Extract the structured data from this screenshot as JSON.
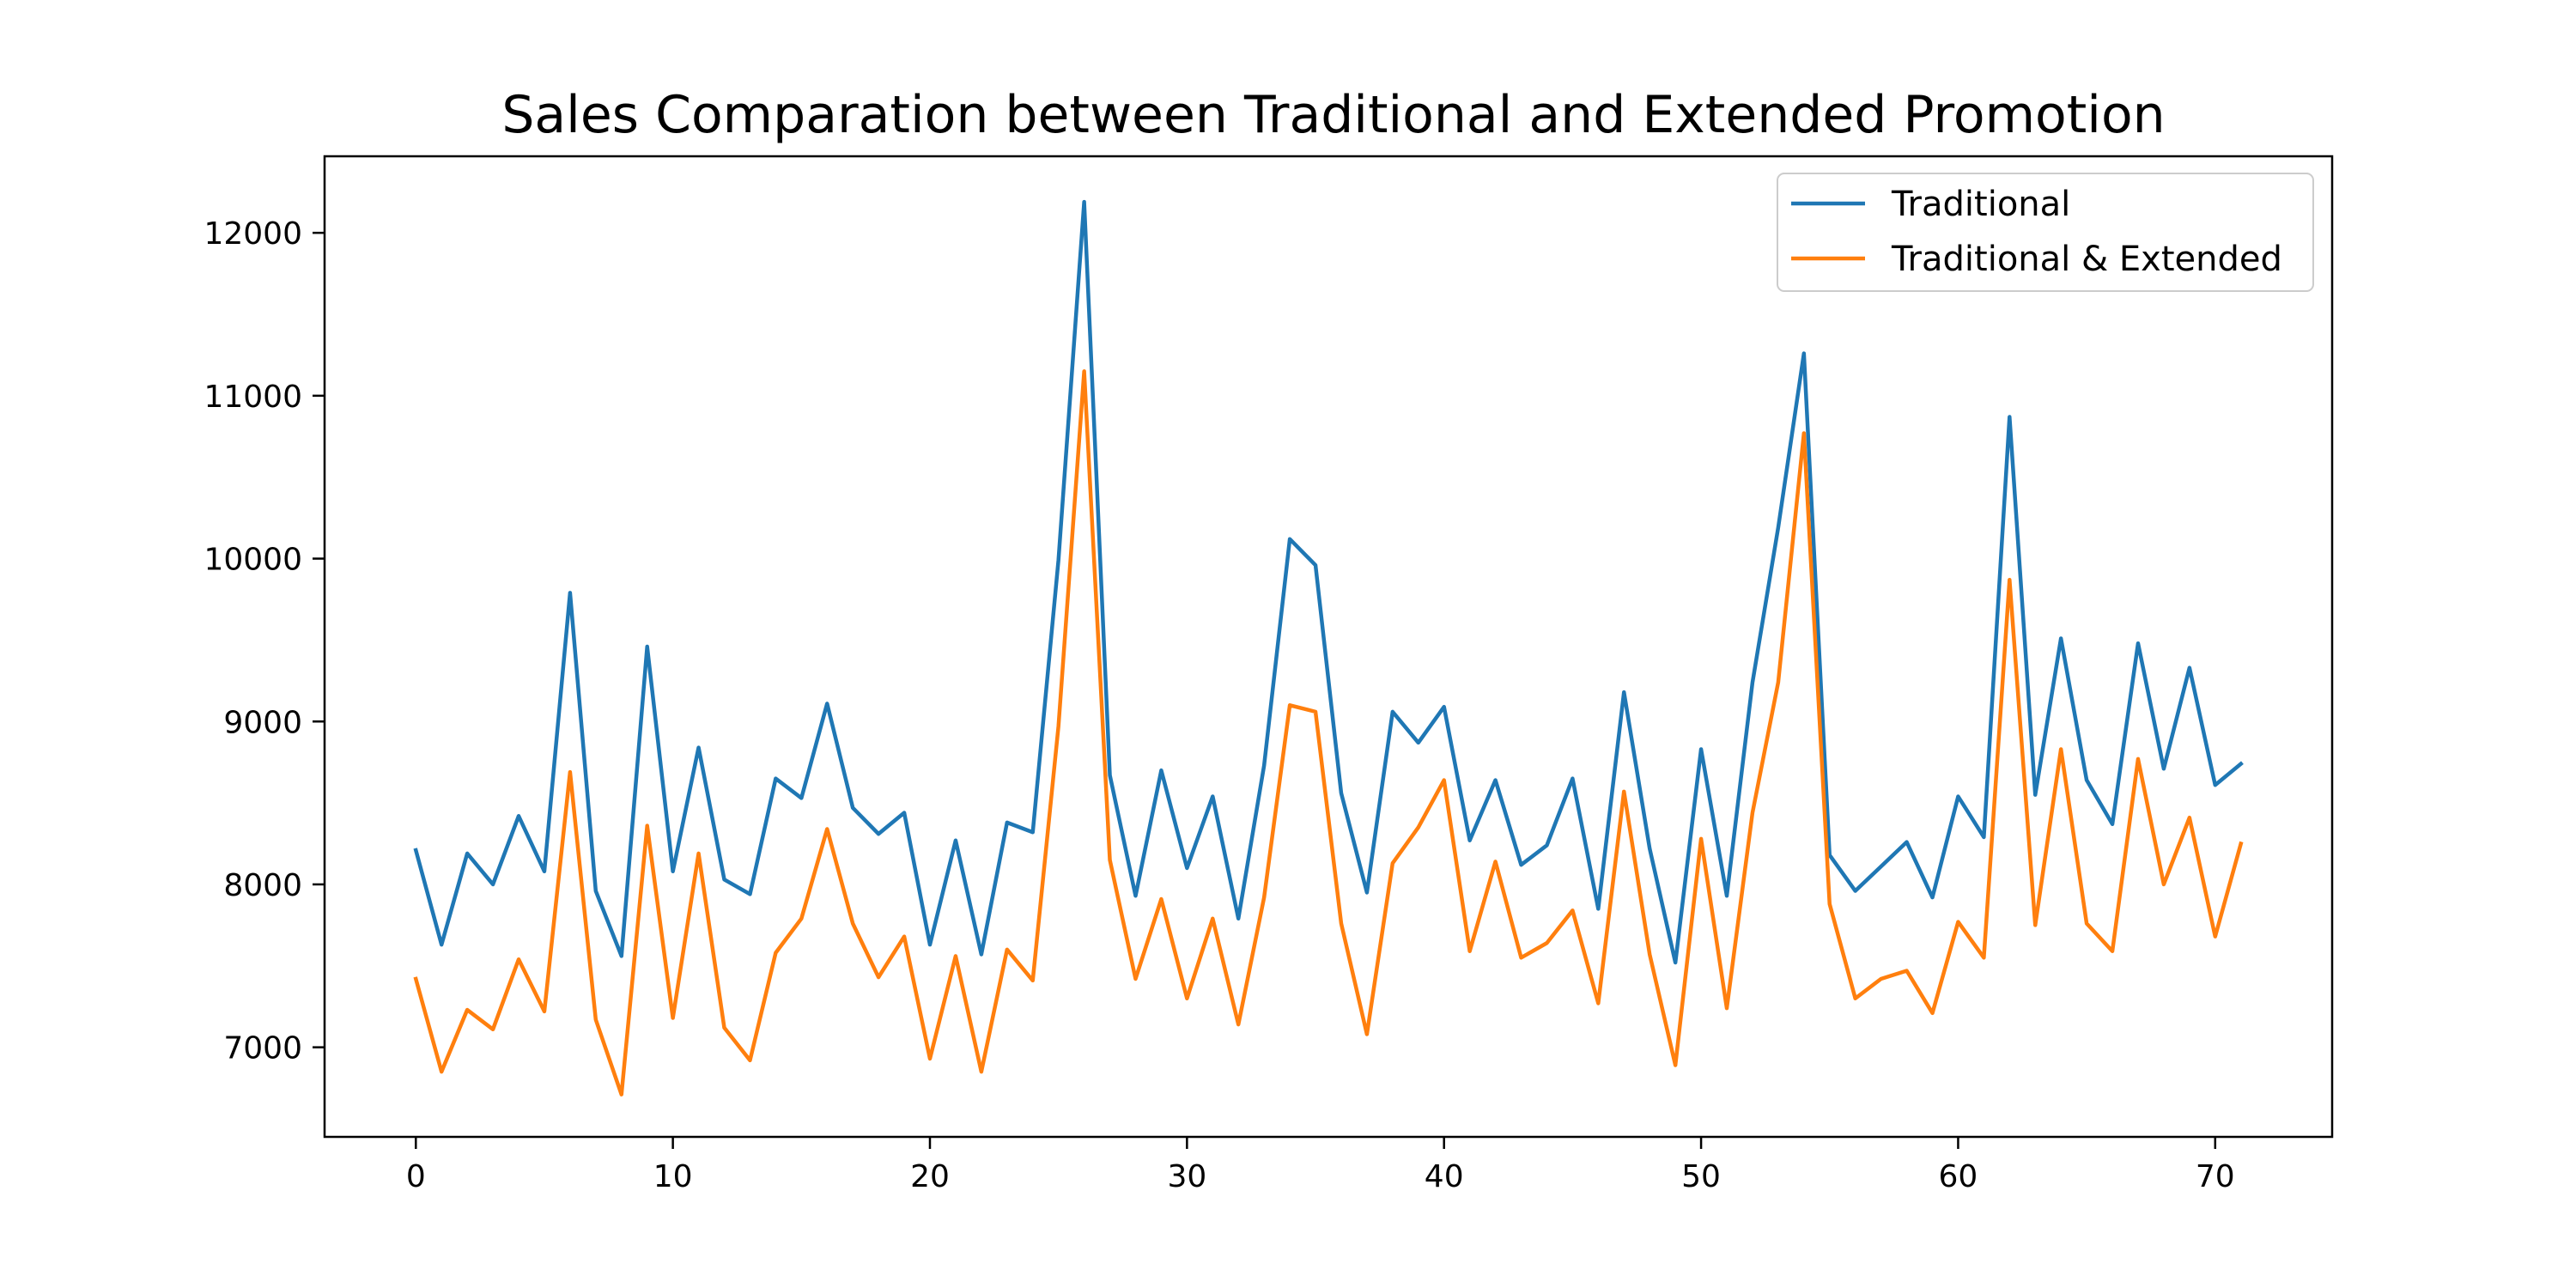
{
  "chart_data": {
    "type": "line",
    "title": "Sales Comparation between Traditional and Extended Promotion",
    "xlabel": "",
    "ylabel": "",
    "xlim": [
      -3.55,
      74.55
    ],
    "ylim": [
      6450,
      12470
    ],
    "xticks": [
      0,
      10,
      20,
      30,
      40,
      50,
      60,
      70
    ],
    "yticks": [
      7000,
      8000,
      9000,
      10000,
      11000,
      12000
    ],
    "grid": false,
    "legend": {
      "location": "top-right"
    },
    "x": [
      0,
      1,
      2,
      3,
      4,
      5,
      6,
      7,
      8,
      9,
      10,
      11,
      12,
      13,
      14,
      15,
      16,
      17,
      18,
      19,
      20,
      21,
      22,
      23,
      24,
      25,
      26,
      27,
      28,
      29,
      30,
      31,
      32,
      33,
      34,
      35,
      36,
      37,
      38,
      39,
      40,
      41,
      42,
      43,
      44,
      45,
      46,
      47,
      48,
      49,
      50,
      51,
      52,
      53,
      54,
      55,
      56,
      57,
      58,
      59,
      60,
      61,
      62,
      63,
      64,
      65,
      66,
      67,
      68,
      69,
      70,
      71
    ],
    "series": [
      {
        "name": "Traditional",
        "color": "#1f77b4",
        "values": [
          8210,
          7630,
          8190,
          8000,
          8420,
          8080,
          9790,
          7960,
          7560,
          9460,
          8080,
          8840,
          8030,
          7940,
          8650,
          8530,
          9110,
          8470,
          8310,
          8440,
          7630,
          8270,
          7570,
          8380,
          8320,
          9990,
          12190,
          8670,
          7930,
          8700,
          8100,
          8540,
          7790,
          8730,
          10120,
          9960,
          8560,
          7950,
          9060,
          8870,
          9090,
          8270,
          8640,
          8120,
          8240,
          8650,
          7850,
          9180,
          8220,
          7520,
          8830,
          7930,
          9240,
          10190,
          11260,
          8180,
          7960,
          8110,
          8260,
          7920,
          8540,
          8290,
          10870,
          8550,
          9510,
          8640,
          8370,
          9480,
          8710,
          9330,
          8610,
          8740
        ]
      },
      {
        "name": "Traditional & Extended",
        "color": "#ff7f0e",
        "values": [
          7420,
          6850,
          7230,
          7110,
          7540,
          7220,
          8690,
          7170,
          6710,
          8360,
          7180,
          8190,
          7120,
          6920,
          7580,
          7790,
          8340,
          7760,
          7430,
          7680,
          6930,
          7560,
          6850,
          7600,
          7410,
          8970,
          11150,
          8150,
          7420,
          7910,
          7300,
          7790,
          7140,
          7920,
          9100,
          9060,
          7760,
          7080,
          8130,
          8350,
          8640,
          7590,
          8140,
          7550,
          7640,
          7840,
          7270,
          8570,
          7570,
          6890,
          8280,
          7240,
          8440,
          9240,
          10770,
          7880,
          7300,
          7420,
          7470,
          7210,
          7770,
          7550,
          9870,
          7750,
          8830,
          7760,
          7590,
          8770,
          8000,
          8410,
          7680,
          8250
        ]
      }
    ]
  }
}
